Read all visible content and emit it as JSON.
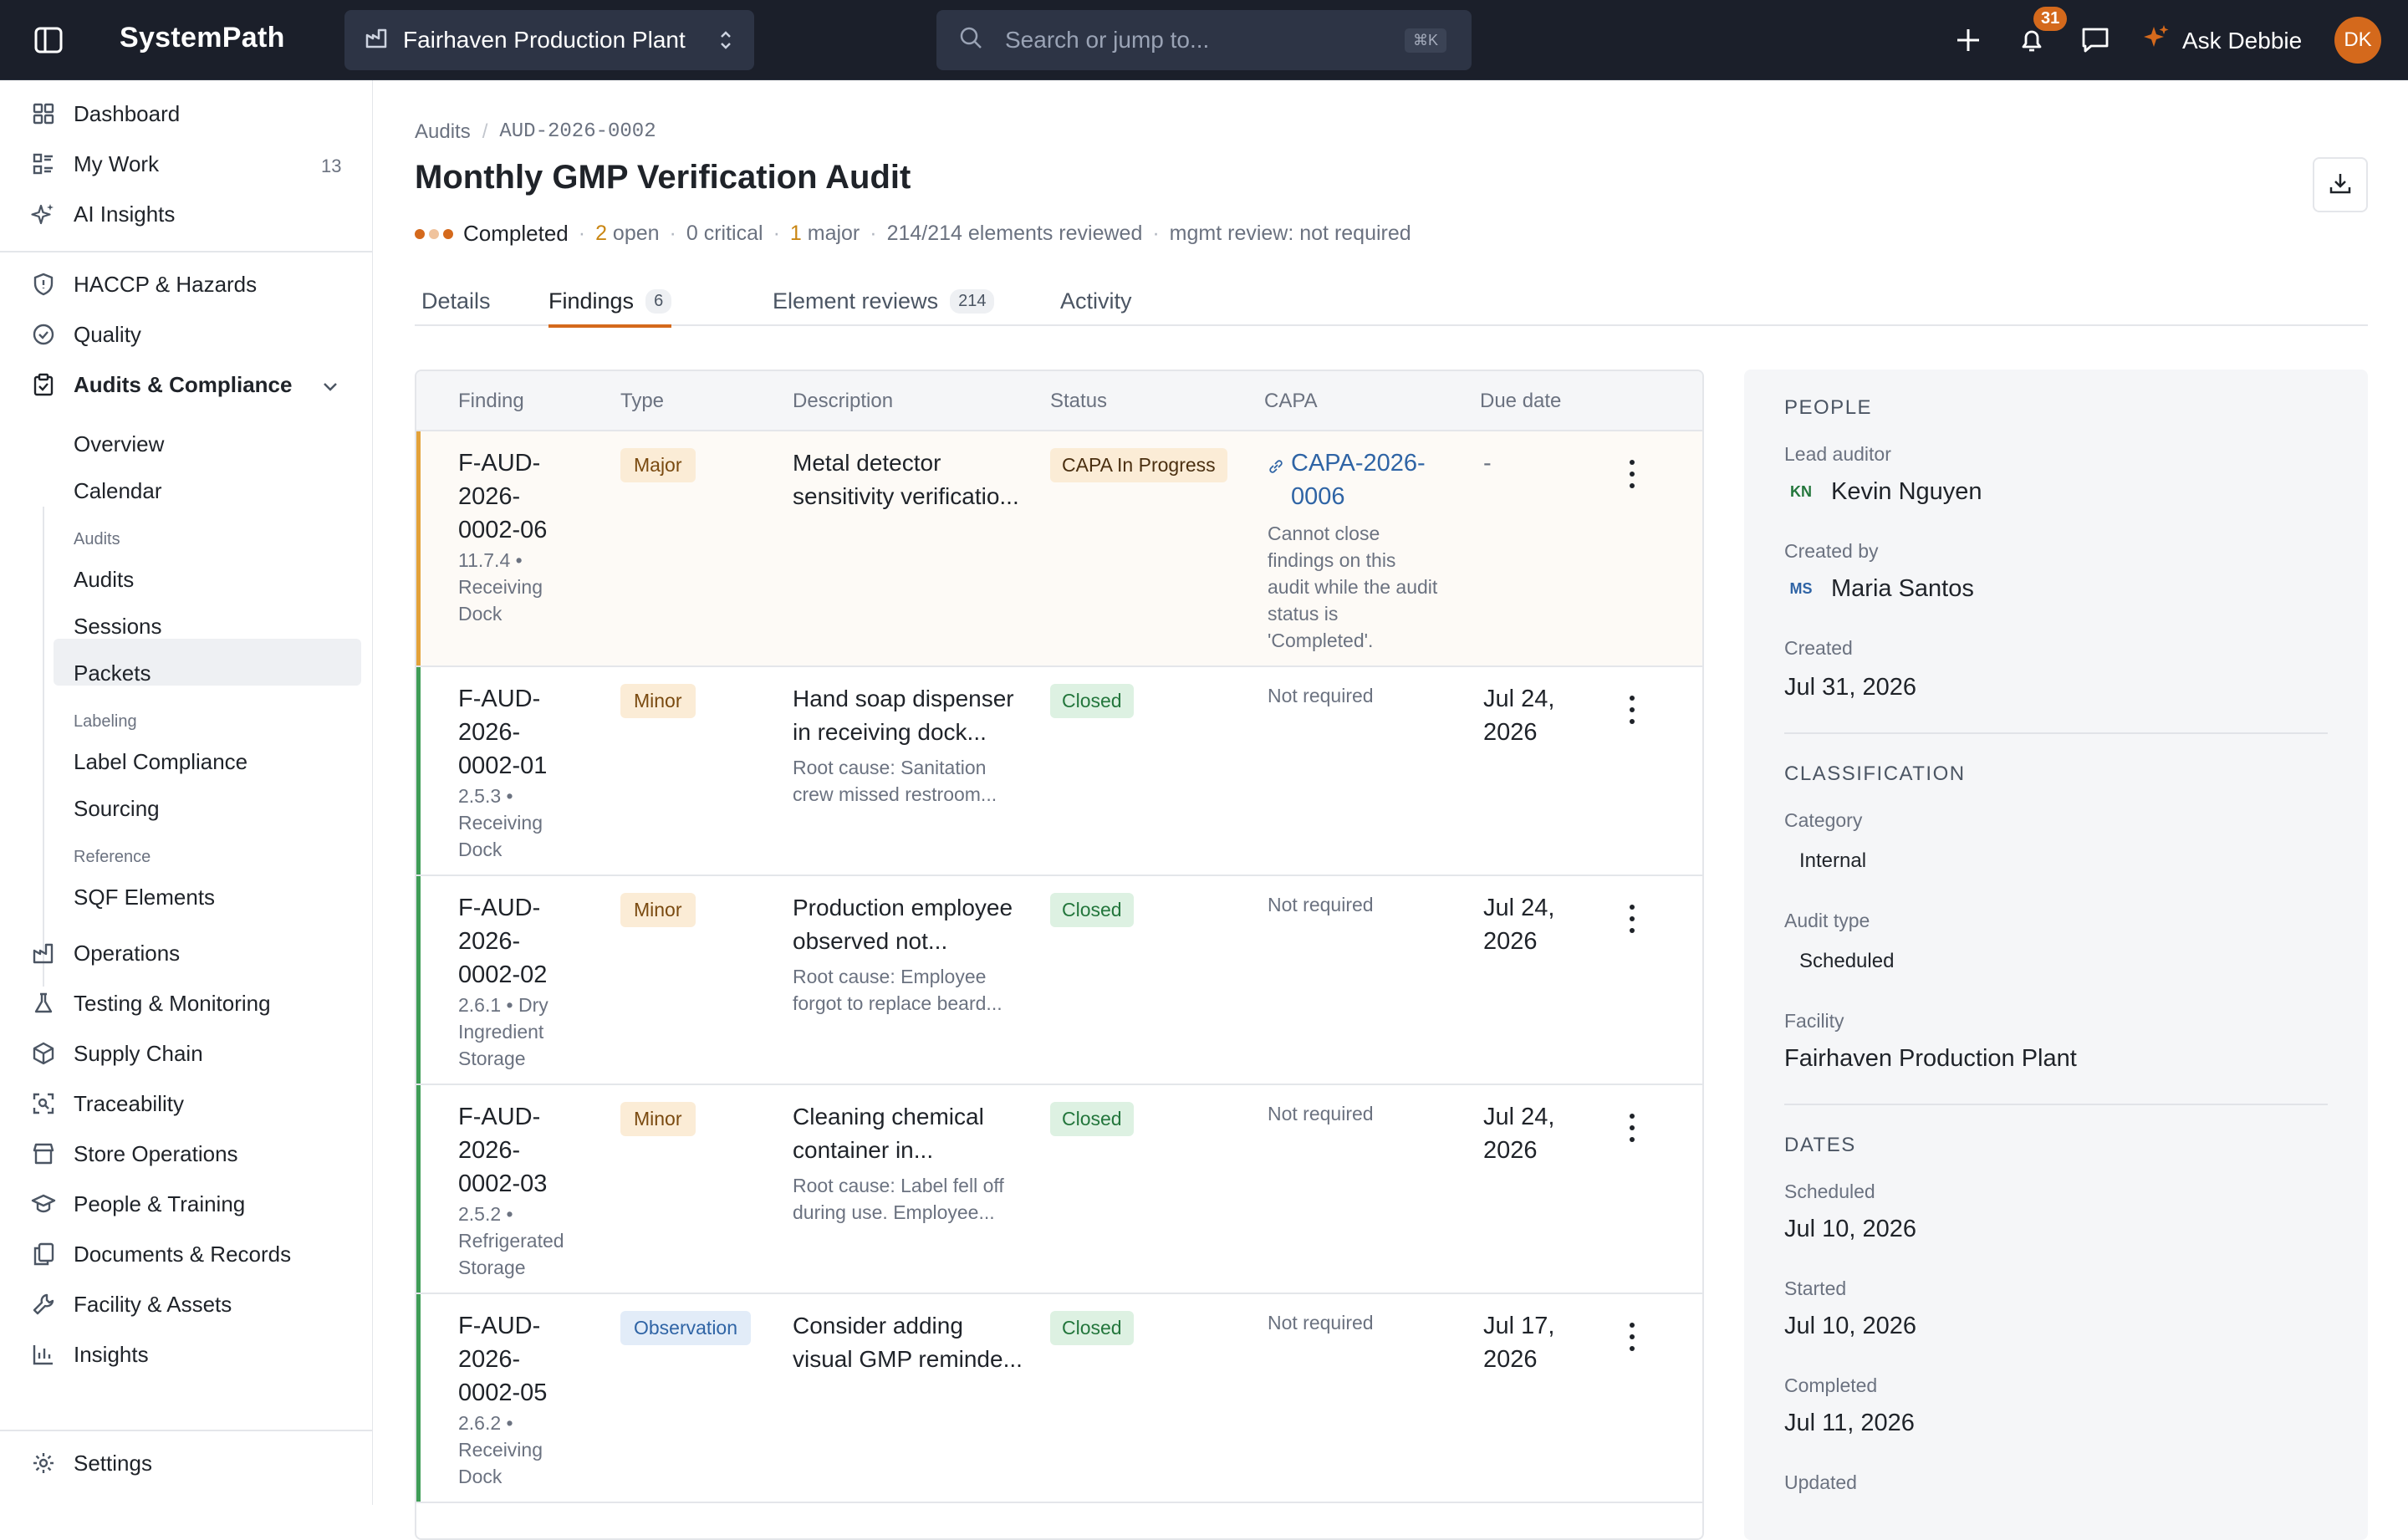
{
  "app": {
    "brand": "SystemPath",
    "facility": "Fairhaven Production Plant",
    "search_placeholder": "Search or jump to...",
    "search_shortcut": "⌘K",
    "notifications_count": "31",
    "assistant_label": "Ask Debbie",
    "user_initials": "DK"
  },
  "sidebar": {
    "top": [
      {
        "label": "Dashboard",
        "icon": "grid-icon"
      },
      {
        "label": "My Work",
        "icon": "list-icon",
        "count": "13"
      },
      {
        "label": "AI Insights",
        "icon": "sparkle-icon"
      }
    ],
    "modules": [
      {
        "label": "HACCP & Hazards",
        "icon": "shield-icon"
      },
      {
        "label": "Quality",
        "icon": "check-circle-icon"
      },
      {
        "label": "Audits & Compliance",
        "icon": "clipboard-icon"
      }
    ],
    "audits_sub": {
      "overview": "Overview",
      "calendar": "Calendar",
      "audits_heading": "Audits",
      "audits": "Audits",
      "sessions": "Sessions",
      "packets": "Packets",
      "labeling_heading": "Labeling",
      "label_compliance": "Label Compliance",
      "sourcing": "Sourcing",
      "reference_heading": "Reference",
      "sqf_elements": "SQF Elements"
    },
    "more": [
      {
        "label": "Operations",
        "icon": "factory-icon"
      },
      {
        "label": "Testing & Monitoring",
        "icon": "flask-icon"
      },
      {
        "label": "Supply Chain",
        "icon": "box-icon"
      },
      {
        "label": "Traceability",
        "icon": "scan-icon"
      },
      {
        "label": "Store Operations",
        "icon": "store-icon"
      },
      {
        "label": "People & Training",
        "icon": "graduation-icon"
      },
      {
        "label": "Documents & Records",
        "icon": "documents-icon"
      },
      {
        "label": "Facility & Assets",
        "icon": "wrench-icon"
      },
      {
        "label": "Insights",
        "icon": "bar-chart-icon"
      }
    ],
    "settings": "Settings"
  },
  "page": {
    "breadcrumb_root": "Audits",
    "breadcrumb_sep": "/",
    "breadcrumb_id": "AUD-2026-0002",
    "title": "Monthly GMP Verification Audit",
    "meta": {
      "status": "Completed",
      "open_count": "2",
      "open_label": "open",
      "critical": "0 critical",
      "major_count": "1",
      "major_label": "major",
      "elements": "214/214 elements reviewed",
      "mgmt": "mgmt review: not required",
      "dot": "·"
    },
    "tabs": [
      {
        "label": "Details",
        "count": ""
      },
      {
        "label": "Findings",
        "count": "6"
      },
      {
        "label": "Element reviews",
        "count": "214"
      },
      {
        "label": "Activity",
        "count": ""
      }
    ]
  },
  "findings": {
    "columns": [
      "Finding",
      "Type",
      "Description",
      "Status",
      "CAPA",
      "Due date"
    ],
    "rows": [
      {
        "id": "F-AUD-2026-0002-06",
        "id_lines": [
          "F-AUD-",
          "2026-",
          "0002-06"
        ],
        "loc_lines": [
          "11.7.4 •",
          "Receiving",
          "Dock"
        ],
        "type": "Major",
        "desc_lines": [
          "Metal detector",
          "sensitivity verificatio..."
        ],
        "desc2_lines": [],
        "status": "CAPA In Progress",
        "capa_lines": [
          "CAPA-2026-",
          "0006"
        ],
        "capa_note_lines": [
          "Cannot close",
          "findings on this",
          "audit while the audit",
          "status is",
          "'Completed'."
        ],
        "due_lines": [
          "-"
        ]
      },
      {
        "id": "F-AUD-2026-0002-01",
        "id_lines": [
          "F-AUD-",
          "2026-",
          "0002-01"
        ],
        "loc_lines": [
          "2.5.3 •",
          "Receiving",
          "Dock"
        ],
        "type": "Minor",
        "desc_lines": [
          "Hand soap dispenser",
          "in receiving dock..."
        ],
        "desc2_lines": [
          "Root cause: Sanitation",
          "crew missed restroom..."
        ],
        "status": "Closed",
        "capa": "Not required",
        "due_lines": [
          "Jul 24,",
          "2026"
        ]
      },
      {
        "id": "F-AUD-2026-0002-02",
        "id_lines": [
          "F-AUD-",
          "2026-",
          "0002-02"
        ],
        "loc_lines": [
          "2.6.1 • Dry",
          "Ingredient",
          "Storage"
        ],
        "type": "Minor",
        "desc_lines": [
          "Production employee",
          "observed not..."
        ],
        "desc2_lines": [
          "Root cause: Employee",
          "forgot to replace beard..."
        ],
        "status": "Closed",
        "capa": "Not required",
        "due_lines": [
          "Jul 24,",
          "2026"
        ]
      },
      {
        "id": "F-AUD-2026-0002-03",
        "id_lines": [
          "F-AUD-",
          "2026-",
          "0002-03"
        ],
        "loc_lines": [
          "2.5.2 •",
          "Refrigerated",
          "Storage"
        ],
        "type": "Minor",
        "desc_lines": [
          "Cleaning chemical",
          "container in..."
        ],
        "desc2_lines": [
          "Root cause: Label fell off",
          "during use. Employee..."
        ],
        "status": "Closed",
        "capa": "Not required",
        "due_lines": [
          "Jul 24,",
          "2026"
        ]
      },
      {
        "id": "F-AUD-2026-0002-05",
        "id_lines": [
          "F-AUD-",
          "2026-",
          "0002-05"
        ],
        "loc_lines": [
          "2.6.2 •",
          "Receiving",
          "Dock"
        ],
        "type": "Observation",
        "desc_lines": [
          "Consider adding",
          "visual GMP reminde..."
        ],
        "desc2_lines": [],
        "status": "Closed",
        "capa": "Not required",
        "due_lines": [
          "Jul 17,",
          "2026"
        ]
      }
    ]
  },
  "panel": {
    "people_heading": "PEOPLE",
    "lead_label": "Lead auditor",
    "lead_initials": "KN",
    "lead_name": "Kevin Nguyen",
    "created_by_label": "Created by",
    "created_by_initials": "MS",
    "created_by_name": "Maria Santos",
    "created_label": "Created",
    "created_value": "Jul 31, 2026",
    "classification_heading": "CLASSIFICATION",
    "category_label": "Category",
    "category_value": "Internal",
    "audit_type_label": "Audit type",
    "audit_type_value": "Scheduled",
    "facility_label": "Facility",
    "facility_value": "Fairhaven Production Plant",
    "dates_heading": "DATES",
    "scheduled_label": "Scheduled",
    "scheduled_value": "Jul 10, 2026",
    "started_label": "Started",
    "started_value": "Jul 10, 2026",
    "completed_label": "Completed",
    "completed_value": "Jul 11, 2026",
    "updated_label": "Updated"
  },
  "colors": {
    "accent": "#d4691c",
    "link": "#2f64a5",
    "closed_text": "#23763c",
    "major_stripe": "#e3a23a",
    "closed_stripe": "#3f9d57"
  }
}
